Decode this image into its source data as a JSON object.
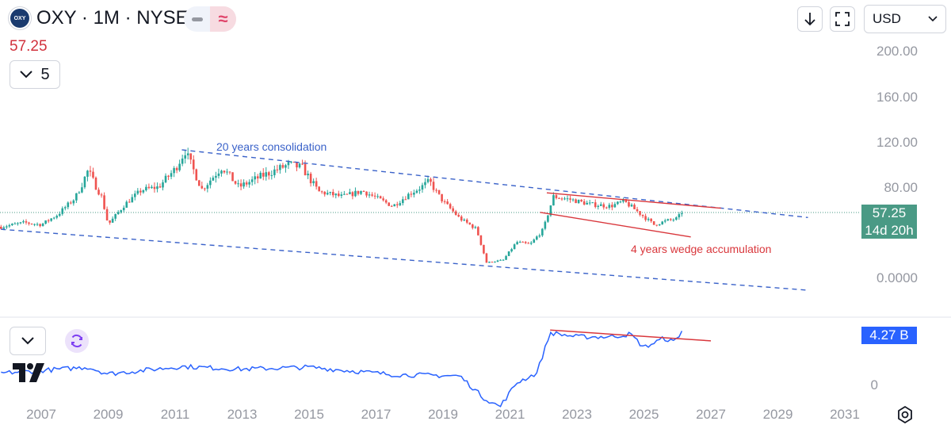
{
  "header": {
    "title": "OXY · 1M · NYSE",
    "logo_text": "OXY",
    "price": "57.25",
    "collapse_count": "5",
    "currency": "USD"
  },
  "price_axis": {
    "labels": [
      "200.00",
      "160.00",
      "120.00",
      "80.00",
      "0.0000"
    ],
    "last_price": "57.25",
    "countdown": "14d 20h"
  },
  "volume_axis": {
    "last_value": "4.27 B",
    "zero_label": "0"
  },
  "time_axis": {
    "labels": [
      "2007",
      "2009",
      "2011",
      "2013",
      "2015",
      "2017",
      "2019",
      "2021",
      "2023",
      "2025",
      "2027",
      "2029",
      "2031"
    ]
  },
  "annotations": {
    "channel_label": "20 years consolidation",
    "wedge_label": "4 years wedge accumulation"
  },
  "colors": {
    "up": "#26a69a",
    "down": "#ef5350",
    "channel": "#3a62c9",
    "wedge": "#d9373c",
    "obv": "#2962ff",
    "last_price_tag": "#4a9a85",
    "title_price": "#d1313c"
  },
  "icons": {
    "collapse": "chevron-down-icon",
    "download": "arrow-down-icon",
    "fullscreen": "fullscreen-icon",
    "currency_dropdown": "chevron-down-icon",
    "indicator_refresh": "refresh-icon",
    "settings": "gear-icon",
    "brand": "tradingview-logo"
  },
  "chart_data": [
    {
      "type": "candlestick",
      "symbol": "OXY",
      "interval": "1M",
      "exchange": "NYSE",
      "y_axis": {
        "scale": "non-linear",
        "tick_labels": [
          "200.00",
          "160.00",
          "120.00",
          "80.00",
          "0.0000"
        ]
      },
      "last_price": 57.25,
      "approx_close_path": [
        {
          "x": 2005.8,
          "y": 40
        },
        {
          "x": 2006.5,
          "y": 44
        },
        {
          "x": 2007.0,
          "y": 42
        },
        {
          "x": 2007.5,
          "y": 52
        },
        {
          "x": 2008.0,
          "y": 68
        },
        {
          "x": 2008.4,
          "y": 95
        },
        {
          "x": 2008.8,
          "y": 70
        },
        {
          "x": 2009.0,
          "y": 42
        },
        {
          "x": 2009.5,
          "y": 62
        },
        {
          "x": 2010.0,
          "y": 77
        },
        {
          "x": 2010.5,
          "y": 80
        },
        {
          "x": 2011.0,
          "y": 96
        },
        {
          "x": 2011.3,
          "y": 112
        },
        {
          "x": 2011.8,
          "y": 78
        },
        {
          "x": 2012.4,
          "y": 98
        },
        {
          "x": 2012.9,
          "y": 80
        },
        {
          "x": 2013.6,
          "y": 90
        },
        {
          "x": 2014.4,
          "y": 100
        },
        {
          "x": 2014.8,
          "y": 97
        },
        {
          "x": 2015.3,
          "y": 75
        },
        {
          "x": 2016.0,
          "y": 70
        },
        {
          "x": 2016.6,
          "y": 76
        },
        {
          "x": 2017.5,
          "y": 60
        },
        {
          "x": 2018.0,
          "y": 73
        },
        {
          "x": 2018.6,
          "y": 85
        },
        {
          "x": 2019.0,
          "y": 65
        },
        {
          "x": 2019.5,
          "y": 48
        },
        {
          "x": 2020.0,
          "y": 38
        },
        {
          "x": 2020.3,
          "y": 12
        },
        {
          "x": 2020.8,
          "y": 14
        },
        {
          "x": 2021.2,
          "y": 28
        },
        {
          "x": 2021.6,
          "y": 26
        },
        {
          "x": 2022.0,
          "y": 38
        },
        {
          "x": 2022.3,
          "y": 70
        },
        {
          "x": 2022.8,
          "y": 67
        },
        {
          "x": 2023.4,
          "y": 62
        },
        {
          "x": 2024.0,
          "y": 60
        },
        {
          "x": 2024.4,
          "y": 65
        },
        {
          "x": 2024.8,
          "y": 55
        },
        {
          "x": 2025.3,
          "y": 42
        },
        {
          "x": 2025.7,
          "y": 46
        },
        {
          "x": 2026.0,
          "y": 48
        },
        {
          "x": 2026.2,
          "y": 57.25
        }
      ],
      "drawings": [
        {
          "type": "dashed-line",
          "role": "channel-top",
          "points": [
            {
              "x": 2011.2,
              "y": 113
            },
            {
              "x": 2029.9,
              "y": 49
            }
          ]
        },
        {
          "type": "dashed-line",
          "role": "channel-bottom",
          "points": [
            {
              "x": 2005.8,
              "y": 38
            },
            {
              "x": 2029.9,
              "y": -12
            }
          ]
        },
        {
          "type": "line",
          "role": "wedge-top",
          "points": [
            {
              "x": 2022.1,
              "y": 74
            },
            {
              "x": 2027.3,
              "y": 58
            }
          ]
        },
        {
          "type": "line",
          "role": "wedge-bottom",
          "points": [
            {
              "x": 2021.9,
              "y": 54
            },
            {
              "x": 2026.4,
              "y": 32
            }
          ]
        }
      ]
    },
    {
      "type": "line",
      "name": "",
      "y_axis": {
        "tick_labels": [
          "0"
        ],
        "last_value": "4.27 B"
      },
      "approx_values": [
        {
          "x": 2005.8,
          "y": 0.9
        },
        {
          "x": 2007.0,
          "y": 1.1
        },
        {
          "x": 2008.4,
          "y": 1.35
        },
        {
          "x": 2009.0,
          "y": 0.85
        },
        {
          "x": 2011.2,
          "y": 1.4
        },
        {
          "x": 2013.0,
          "y": 1.2
        },
        {
          "x": 2015.0,
          "y": 1.35
        },
        {
          "x": 2017.5,
          "y": 0.8
        },
        {
          "x": 2019.5,
          "y": 0.7
        },
        {
          "x": 2020.2,
          "y": -0.9
        },
        {
          "x": 2020.7,
          "y": -1.6
        },
        {
          "x": 2021.2,
          "y": 0.2
        },
        {
          "x": 2021.8,
          "y": 0.9
        },
        {
          "x": 2022.2,
          "y": 3.9
        },
        {
          "x": 2023.0,
          "y": 3.6
        },
        {
          "x": 2024.0,
          "y": 3.6
        },
        {
          "x": 2024.6,
          "y": 3.8
        },
        {
          "x": 2025.0,
          "y": 2.8
        },
        {
          "x": 2025.6,
          "y": 3.5
        },
        {
          "x": 2025.9,
          "y": 3.2
        },
        {
          "x": 2026.2,
          "y": 4.27
        }
      ],
      "drawings": [
        {
          "type": "line",
          "role": "resistance",
          "points": [
            {
              "x": 2022.2,
              "y": 4.1
            },
            {
              "x": 2027.0,
              "y": 3.3
            }
          ]
        }
      ]
    }
  ]
}
